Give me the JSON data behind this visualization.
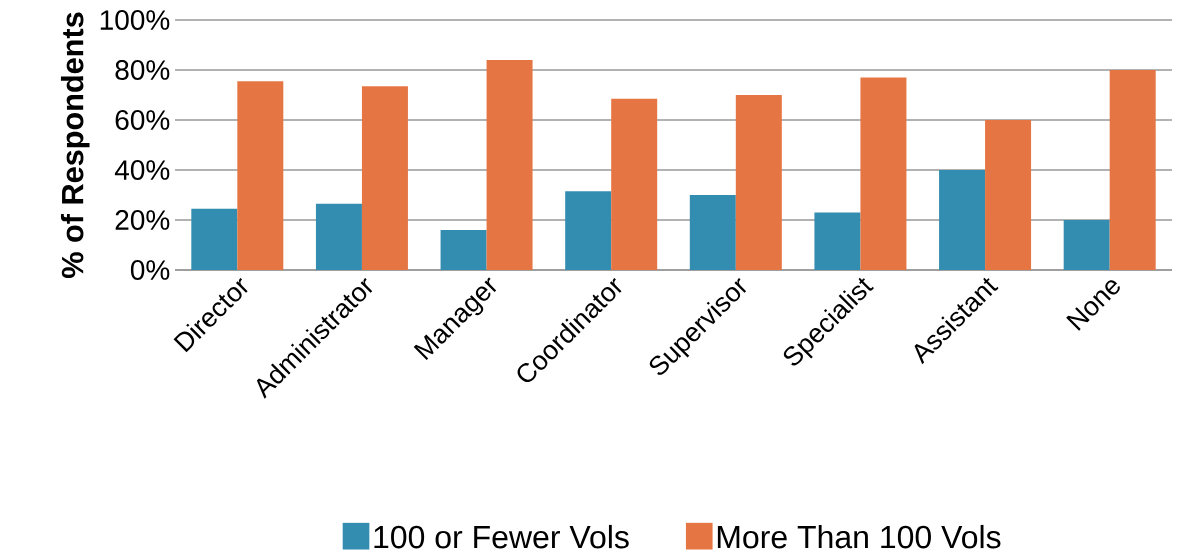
{
  "chart_data": {
    "type": "bar",
    "ylabel": "% of Respondents",
    "categories": [
      "Director",
      "Administrator",
      "Manager",
      "Coordinator",
      "Supervisor",
      "Specialist",
      "Assistant",
      "None"
    ],
    "series": [
      {
        "name": "100 or Fewer Vols",
        "color": "#338db0",
        "values": [
          24.5,
          26.5,
          16,
          31.5,
          30,
          23,
          40,
          20
        ]
      },
      {
        "name": "More Than 100 Vols",
        "color": "#e57644",
        "values": [
          75.5,
          73.5,
          84,
          68.5,
          70,
          77,
          60,
          80
        ]
      }
    ],
    "ylim": [
      0,
      100
    ],
    "yticks": [
      {
        "value": 0,
        "label": "0%"
      },
      {
        "value": 20,
        "label": "20%"
      },
      {
        "value": 40,
        "label": "40%"
      },
      {
        "value": 60,
        "label": "60%"
      },
      {
        "value": 80,
        "label": "80%"
      },
      {
        "value": 100,
        "label": "100%"
      }
    ],
    "grid": "y",
    "legend": "bottom"
  }
}
